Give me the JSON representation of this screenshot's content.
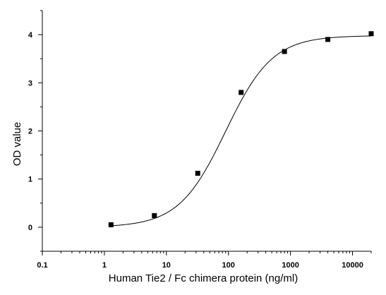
{
  "chart_data": {
    "type": "scatter",
    "title": "",
    "xlabel": "Human Tie2 / Fc chimera protein (ng/ml)",
    "ylabel": "OD value",
    "x_scale": "log",
    "xlim": [
      0.1,
      20000
    ],
    "ylim": [
      -0.5,
      4.5
    ],
    "x_ticks": [
      0.1,
      1,
      10,
      100,
      1000,
      10000
    ],
    "x_tick_labels": [
      "0.1",
      "1",
      "10",
      "100",
      "1000",
      "10000"
    ],
    "y_ticks": [
      0,
      1,
      2,
      3,
      4
    ],
    "y_tick_labels": [
      "0",
      "1",
      "2",
      "3",
      "4"
    ],
    "grid": false,
    "legend": "none",
    "series": [
      {
        "x": [
          1.28,
          6.4,
          32,
          160,
          800,
          4000,
          20000
        ],
        "y": [
          0.05,
          0.24,
          1.12,
          2.8,
          3.65,
          3.9,
          4.02
        ]
      }
    ],
    "fit_curve": {
      "model": "4PL",
      "bottom": 0.0,
      "top": 3.98,
      "ec50": 90,
      "hill": 1.15
    }
  }
}
